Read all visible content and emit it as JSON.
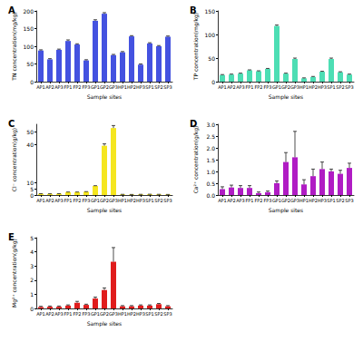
{
  "chart_data": [
    {
      "type": "bar",
      "title": "A",
      "x_label": "Sample sites",
      "y_label": "TN concentration(mg/kg)",
      "categories": [
        "AP1",
        "AP2",
        "AP3",
        "FP1",
        "FP2",
        "FP3",
        "GP1",
        "GP2",
        "GP3",
        "HP1",
        "HP2",
        "HP3",
        "SP1",
        "SP2",
        "SP3"
      ],
      "values": [
        88,
        63,
        90,
        115,
        105,
        60,
        172,
        192,
        75,
        83,
        128,
        48,
        108,
        100,
        127
      ],
      "errors": [
        2,
        2,
        2,
        3,
        2,
        2,
        3,
        3,
        2,
        2,
        2,
        2,
        2,
        2,
        2
      ],
      "color": "#4452e0",
      "ylim": [
        0,
        200
      ],
      "yticks": [
        0,
        50,
        100,
        150,
        200
      ],
      "grid": false
    },
    {
      "type": "bar",
      "title": "B",
      "x_label": "Sample sites",
      "y_label": "TP concentration(mg/kg)",
      "categories": [
        "AP1",
        "AP2",
        "AP3",
        "FP1",
        "FP2",
        "FP3",
        "GP1",
        "GP2",
        "GP3",
        "HP1",
        "HP2",
        "HP3",
        "SP1",
        "SP2",
        "SP3"
      ],
      "values": [
        14,
        15,
        17,
        24,
        22,
        27,
        118,
        17,
        48,
        7,
        10,
        21,
        48,
        20,
        15
      ],
      "errors": [
        1,
        1,
        1,
        1,
        1,
        1,
        2,
        1,
        2,
        1,
        1,
        1,
        2,
        1,
        1
      ],
      "color": "#4ddeb4",
      "ylim": [
        0,
        150
      ],
      "yticks": [
        0,
        50,
        100,
        150
      ],
      "grid": false
    },
    {
      "type": "bar",
      "title": "C",
      "x_label": "Sample sites",
      "y_label": "Cl⁻ concentration(g/kg)",
      "categories": [
        "AP1",
        "AP2",
        "AP3",
        "FP1",
        "FP2",
        "FP3",
        "GP1",
        "GP2",
        "GP3",
        "HP1",
        "HP2",
        "HP3",
        "SP1",
        "SP2",
        "SP3"
      ],
      "values": [
        1.0,
        0.9,
        1.0,
        2.3,
        2.3,
        2.6,
        7.2,
        39,
        53,
        0.5,
        0.4,
        0.5,
        0.6,
        0.5,
        0.4
      ],
      "errors": [
        0.1,
        0.1,
        0.1,
        0.1,
        0.1,
        0.1,
        0.2,
        1.5,
        2,
        0.05,
        0.05,
        0.05,
        0.05,
        0.05,
        0.05
      ],
      "color": "#f5e61f",
      "ylim": [
        0,
        56
      ],
      "yticks": [
        0,
        5,
        10,
        40,
        50
      ],
      "grid": false
    },
    {
      "type": "bar",
      "title": "D",
      "x_label": "Sample sites",
      "y_label": "Ca²⁺ concentration(g/kg)",
      "categories": [
        "AP1",
        "AP2",
        "AP3",
        "FP1",
        "FP2",
        "FP3",
        "GP1",
        "GP2",
        "GP3",
        "HP1",
        "HP2",
        "HP3",
        "SP1",
        "SP2",
        "SP3"
      ],
      "values": [
        0.25,
        0.32,
        0.3,
        0.3,
        0.08,
        0.12,
        0.5,
        1.4,
        1.6,
        0.45,
        0.8,
        1.1,
        1.0,
        0.9,
        1.15
      ],
      "errors": [
        0.1,
        0.1,
        0.1,
        0.1,
        0.05,
        0.05,
        0.1,
        0.4,
        1.1,
        0.2,
        0.3,
        0.3,
        0.1,
        0.15,
        0.2
      ],
      "color": "#b01cc4",
      "ylim": [
        0,
        3
      ],
      "yticks": [
        {
          "value": 0,
          "label": "0.0"
        },
        {
          "value": 0.5,
          "label": "0.5"
        },
        {
          "value": 1,
          "label": "1.0"
        },
        {
          "value": 1.5,
          "label": "1.5"
        },
        {
          "value": 2,
          "label": "2.0"
        },
        {
          "value": 2.5,
          "label": "2.5"
        },
        {
          "value": 3,
          "label": "3.0"
        }
      ],
      "grid": false
    },
    {
      "type": "bar",
      "title": "E",
      "x_label": "Sample sites",
      "y_label": "Mg²⁺ concentration(g/kg)",
      "categories": [
        "AP1",
        "AP2",
        "AP3",
        "FP1",
        "FP2",
        "FP3",
        "GP1",
        "GP2",
        "GP3",
        "HP1",
        "HP2",
        "HP3",
        "SP1",
        "SP2",
        "SP3"
      ],
      "values": [
        0.1,
        0.12,
        0.12,
        0.2,
        0.4,
        0.25,
        0.7,
        1.3,
        3.3,
        0.15,
        0.15,
        0.2,
        0.2,
        0.3,
        0.15
      ],
      "errors": [
        0.05,
        0.05,
        0.05,
        0.05,
        0.1,
        0.05,
        0.1,
        0.15,
        1.0,
        0.05,
        0.05,
        0.05,
        0.05,
        0.05,
        0.05
      ],
      "color": "#e01c1c",
      "ylim": [
        0,
        5
      ],
      "yticks": [
        0,
        1,
        2,
        3,
        4,
        5
      ],
      "grid": false
    }
  ]
}
